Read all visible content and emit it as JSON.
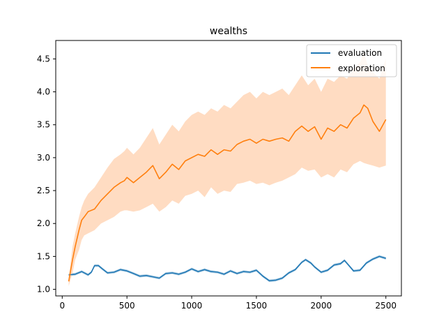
{
  "chart_data": {
    "type": "line",
    "title": "wealths",
    "xlabel": "",
    "ylabel": "",
    "xlim": [
      -50,
      2620
    ],
    "ylim": [
      0.9,
      4.78
    ],
    "xticks": [
      0,
      500,
      1000,
      1500,
      2000,
      2500
    ],
    "xtick_labels": [
      "0",
      "500",
      "1000",
      "1500",
      "2000",
      "2500"
    ],
    "yticks": [
      1.0,
      1.5,
      2.0,
      2.5,
      3.0,
      3.5,
      4.0,
      4.5
    ],
    "ytick_labels": [
      "1.0",
      "1.5",
      "2.0",
      "2.5",
      "3.0",
      "3.5",
      "4.0",
      "4.5"
    ],
    "grid": false,
    "legend": "top-right",
    "series": [
      {
        "name": "evaluation",
        "color": "#1f77b4",
        "band_color": "#1f77b4",
        "x": [
          50,
          100,
          150,
          200,
          225,
          250,
          280,
          310,
          350,
          400,
          450,
          500,
          550,
          600,
          650,
          700,
          750,
          800,
          850,
          900,
          950,
          1000,
          1050,
          1100,
          1150,
          1200,
          1250,
          1300,
          1350,
          1400,
          1450,
          1500,
          1550,
          1600,
          1650,
          1700,
          1750,
          1800,
          1850,
          1880,
          1920,
          1950,
          2000,
          2050,
          2100,
          2150,
          2180,
          2220,
          2250,
          2300,
          2350,
          2400,
          2450,
          2500
        ],
        "values": [
          1.22,
          1.23,
          1.27,
          1.22,
          1.26,
          1.36,
          1.36,
          1.31,
          1.25,
          1.26,
          1.3,
          1.28,
          1.24,
          1.2,
          1.21,
          1.19,
          1.17,
          1.24,
          1.25,
          1.23,
          1.26,
          1.31,
          1.27,
          1.3,
          1.27,
          1.26,
          1.23,
          1.28,
          1.24,
          1.27,
          1.26,
          1.29,
          1.2,
          1.13,
          1.14,
          1.17,
          1.25,
          1.3,
          1.41,
          1.45,
          1.4,
          1.34,
          1.26,
          1.29,
          1.37,
          1.39,
          1.44,
          1.35,
          1.28,
          1.29,
          1.4,
          1.46,
          1.5,
          1.47
        ],
        "band_halfwidth": 0.02
      },
      {
        "name": "exploration",
        "color": "#ff7f0e",
        "band_color": "#ffdcc2",
        "x": [
          50,
          80,
          100,
          130,
          150,
          170,
          200,
          250,
          300,
          350,
          400,
          450,
          480,
          500,
          550,
          600,
          650,
          700,
          750,
          800,
          850,
          900,
          950,
          1000,
          1050,
          1100,
          1150,
          1200,
          1250,
          1300,
          1350,
          1400,
          1450,
          1500,
          1550,
          1600,
          1650,
          1700,
          1750,
          1800,
          1850,
          1900,
          1950,
          2000,
          2050,
          2100,
          2150,
          2200,
          2250,
          2300,
          2330,
          2360,
          2400,
          2450,
          2500
        ],
        "values": [
          1.12,
          1.45,
          1.65,
          1.9,
          2.05,
          2.1,
          2.18,
          2.22,
          2.35,
          2.45,
          2.55,
          2.62,
          2.65,
          2.7,
          2.62,
          2.7,
          2.78,
          2.88,
          2.68,
          2.78,
          2.9,
          2.82,
          2.95,
          3.0,
          3.05,
          3.02,
          3.12,
          3.05,
          3.12,
          3.1,
          3.2,
          3.25,
          3.28,
          3.22,
          3.28,
          3.25,
          3.28,
          3.3,
          3.25,
          3.4,
          3.48,
          3.4,
          3.47,
          3.28,
          3.45,
          3.4,
          3.5,
          3.45,
          3.6,
          3.68,
          3.8,
          3.75,
          3.55,
          3.4,
          3.58
        ],
        "lower": [
          1.05,
          1.25,
          1.45,
          1.6,
          1.75,
          1.82,
          1.85,
          1.9,
          2.0,
          2.05,
          2.1,
          2.18,
          2.2,
          2.2,
          2.18,
          2.2,
          2.25,
          2.3,
          2.18,
          2.25,
          2.35,
          2.3,
          2.42,
          2.45,
          2.5,
          2.4,
          2.55,
          2.45,
          2.5,
          2.48,
          2.6,
          2.62,
          2.65,
          2.6,
          2.62,
          2.58,
          2.62,
          2.65,
          2.7,
          2.75,
          2.85,
          2.8,
          2.82,
          2.7,
          2.75,
          2.7,
          2.82,
          2.78,
          2.9,
          2.95,
          2.92,
          2.9,
          2.88,
          2.85,
          2.88
        ],
        "upper": [
          1.18,
          1.65,
          1.85,
          2.1,
          2.25,
          2.35,
          2.45,
          2.55,
          2.7,
          2.85,
          2.98,
          3.05,
          3.1,
          3.15,
          3.05,
          3.15,
          3.3,
          3.45,
          3.2,
          3.35,
          3.5,
          3.4,
          3.55,
          3.65,
          3.7,
          3.65,
          3.75,
          3.7,
          3.8,
          3.75,
          3.85,
          3.95,
          4.0,
          3.9,
          4.0,
          3.95,
          4.0,
          4.05,
          3.95,
          4.1,
          4.25,
          4.1,
          4.2,
          4.0,
          4.2,
          4.15,
          4.25,
          4.2,
          4.35,
          4.45,
          4.6,
          4.4,
          4.3,
          4.2,
          4.5
        ]
      }
    ]
  }
}
